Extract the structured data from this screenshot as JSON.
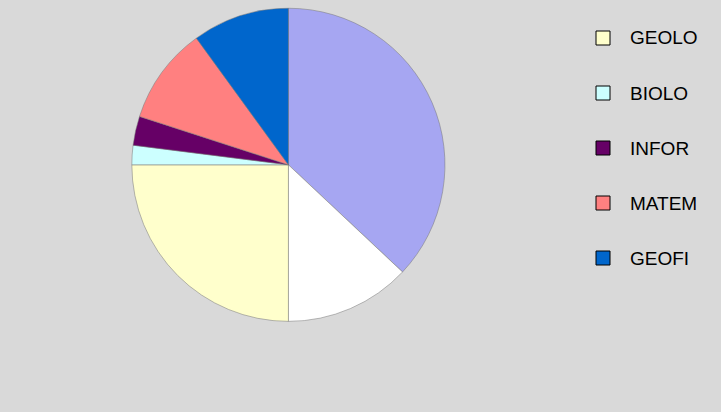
{
  "chart_data": {
    "type": "pie",
    "categories": [
      null,
      null,
      "GEOLO",
      "BIOLO",
      "INFOR",
      "MATEM",
      "GEOFI"
    ],
    "values": [
      37,
      13,
      25,
      2,
      3,
      10,
      10
    ],
    "colors": [
      "#a6a6f2",
      "#ffffff",
      "#ffffcc",
      "#ccffff",
      "#660066",
      "#ff8080",
      "#0066cc"
    ],
    "data_labels": false
  }
}
